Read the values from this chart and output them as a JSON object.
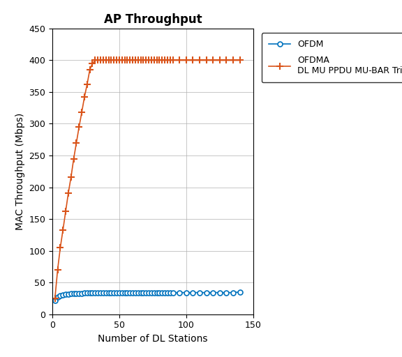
{
  "title": "AP Throughput",
  "xlabel": "Number of DL Stations",
  "ylabel": "MAC Throughput (Mbps)",
  "xlim": [
    0,
    150
  ],
  "ylim": [
    0,
    450
  ],
  "xticks": [
    0,
    50,
    100,
    150
  ],
  "yticks": [
    0,
    50,
    100,
    150,
    200,
    250,
    300,
    350,
    400,
    450
  ],
  "ofdm_x": [
    2,
    4,
    6,
    8,
    10,
    12,
    14,
    16,
    18,
    20,
    22,
    24,
    26,
    28,
    30,
    32,
    34,
    36,
    38,
    40,
    42,
    44,
    46,
    48,
    50,
    52,
    54,
    56,
    58,
    60,
    62,
    64,
    66,
    68,
    70,
    72,
    74,
    76,
    78,
    80,
    82,
    84,
    86,
    88,
    90,
    95,
    100,
    105,
    110,
    115,
    120,
    125,
    130,
    135,
    140
  ],
  "ofdm_y": [
    22,
    27,
    29,
    30,
    31,
    31.5,
    32,
    32.5,
    32.5,
    33,
    33,
    33.5,
    33.5,
    33.5,
    34,
    34,
    34,
    34,
    34,
    34,
    34,
    34,
    34,
    34,
    34,
    34,
    34,
    34,
    34,
    34,
    34,
    34,
    34,
    34,
    34,
    34,
    34,
    34,
    34,
    34,
    34,
    34,
    34,
    34,
    34,
    34,
    34,
    34,
    34,
    34,
    34,
    34,
    34,
    34,
    35
  ],
  "ofdma_x": [
    2,
    4,
    6,
    8,
    10,
    12,
    14,
    16,
    18,
    20,
    22,
    24,
    26,
    28,
    30,
    32,
    34,
    36,
    38,
    40,
    42,
    44,
    46,
    48,
    50,
    52,
    54,
    56,
    58,
    60,
    62,
    64,
    66,
    68,
    70,
    72,
    74,
    76,
    78,
    80,
    82,
    84,
    86,
    88,
    90,
    95,
    100,
    105,
    110,
    115,
    120,
    125,
    130,
    135,
    140
  ],
  "ofdma_y": [
    25,
    70,
    105,
    133,
    162,
    191,
    216,
    245,
    270,
    295,
    318,
    342,
    362,
    385,
    395,
    400,
    400,
    400,
    400,
    400,
    400,
    400,
    400,
    400,
    400,
    400,
    400,
    400,
    400,
    400,
    400,
    400,
    400,
    400,
    400,
    400,
    400,
    400,
    400,
    400,
    400,
    400,
    400,
    400,
    400,
    400,
    400,
    400,
    400,
    400,
    400,
    400,
    400,
    400,
    400
  ],
  "ofdm_color": "#0072BD",
  "ofdma_color": "#D95319",
  "ofdm_label": "OFDM",
  "ofdma_label": "OFDMA\nDL MU PPDU MU-BAR Trigger",
  "title_fontsize": 12,
  "label_fontsize": 10,
  "tick_fontsize": 9,
  "legend_fontsize": 9
}
